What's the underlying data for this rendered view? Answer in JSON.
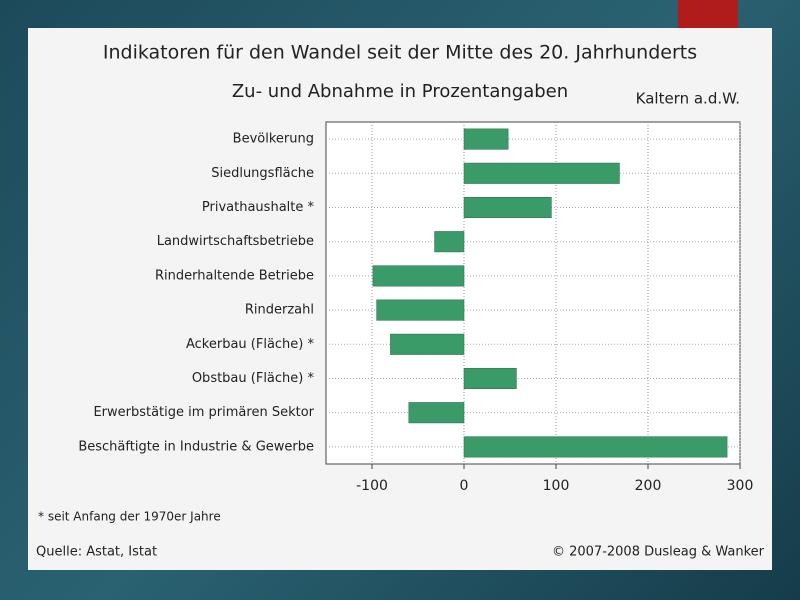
{
  "chart_data": {
    "type": "barh",
    "title": "Indikatoren für den Wandel seit der Mitte des 20. Jahrhunderts",
    "subtitle": "Zu- und Abnahme in Prozentangaben",
    "location": "Kaltern a.d.W.",
    "footnote": "* seit Anfang der 1970er Jahre",
    "source": "Quelle: Astat, Istat",
    "copyright": "© 2007-2008 Dusleag & Wanker",
    "categories": [
      "Bevölkerung",
      "Siedlungsfläche",
      "Privathaushalte *",
      "Landwirtschaftsbetriebe",
      "Rinderhaltende Betriebe",
      "Rinderzahl",
      "Ackerbau (Fläche) *",
      "Obstbau (Fläche) *",
      "Erwerbstätige im primären Sektor",
      "Beschäftigte in Industrie & Gewerbe"
    ],
    "values": [
      48,
      169,
      95,
      -32,
      -99,
      -95,
      -80,
      57,
      -60,
      286
    ],
    "color": "#3a9a68",
    "xlim": [
      -150,
      300
    ],
    "xticks": [
      -100,
      0,
      100,
      200,
      300
    ],
    "grid": true
  }
}
